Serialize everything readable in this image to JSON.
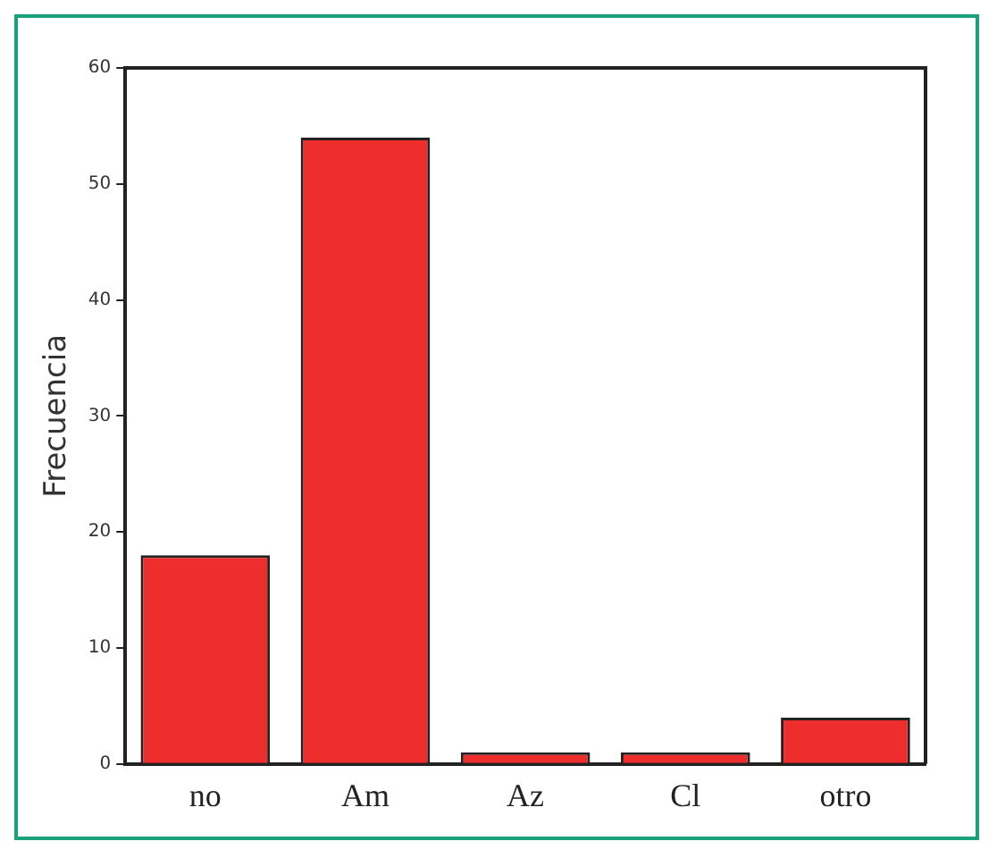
{
  "chart_data": {
    "type": "bar",
    "ylabel": "Frecuencia",
    "categories": [
      "no",
      "Am",
      "Az",
      "Cl",
      "otro"
    ],
    "values": [
      18,
      54,
      1,
      1,
      4
    ],
    "color": "#ee2e2c",
    "ylim": [
      0,
      60
    ],
    "yticks": [
      0,
      10,
      20,
      30,
      40,
      50,
      60
    ],
    "grid": false,
    "legend": false
  }
}
